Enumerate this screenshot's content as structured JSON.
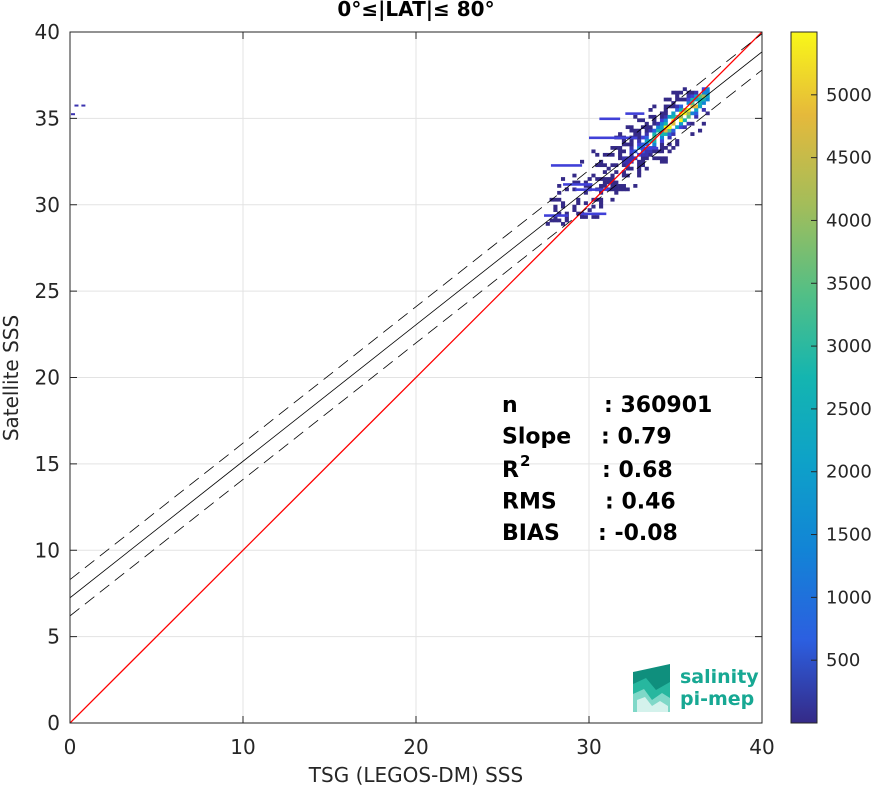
{
  "chart_data": {
    "type": "heatmap",
    "title": "0°≤|LAT|≤ 80°",
    "xlabel": "TSG (LEGOS-DM) SSS",
    "ylabel": "Satellite SSS",
    "xlim": [
      0,
      40
    ],
    "ylim": [
      0,
      40
    ],
    "xticks": [
      "0",
      "10",
      "20",
      "30",
      "40"
    ],
    "yticks": [
      "0",
      "5",
      "10",
      "15",
      "20",
      "25",
      "30",
      "35",
      "40"
    ],
    "grid": true,
    "colormap": "parula",
    "colorbar": {
      "range": [
        0,
        5500
      ],
      "ticks": [
        "500",
        "1000",
        "1500",
        "2000",
        "2500",
        "3000",
        "3500",
        "4000",
        "4500",
        "5000"
      ]
    },
    "lines": [
      {
        "name": "identity",
        "style": "solid",
        "color": "#ff0000",
        "slope": 1.0,
        "intercept": 0.0
      },
      {
        "name": "fit",
        "style": "solid",
        "color": "#000000",
        "slope": 0.79,
        "intercept": 7.25
      },
      {
        "name": "fit+std",
        "style": "dashed",
        "color": "#000000",
        "slope": 0.79,
        "intercept": 8.3
      },
      {
        "name": "fit-std",
        "style": "dashed",
        "color": "#000000",
        "slope": 0.79,
        "intercept": 6.2
      }
    ],
    "density_cluster": {
      "x_range": [
        27.5,
        36.8
      ],
      "y_range": [
        28.8,
        36.8
      ],
      "peak": [
        35.3,
        35.1
      ]
    },
    "stats": [
      {
        "label": "n",
        "value": ": 360901"
      },
      {
        "label": "Slope",
        "value": ": 0.79"
      },
      {
        "label": "R",
        "sup": "2",
        "value": ": 0.68"
      },
      {
        "label": "RMS",
        "value": ": 0.46"
      },
      {
        "label": "BIAS",
        "value": ": -0.08"
      }
    ]
  },
  "logo": {
    "line1": "salinity",
    "line2": "pi-mep"
  },
  "colors": {
    "identity": "#ff0000",
    "fit": "#000000",
    "logo": "#17a893"
  }
}
